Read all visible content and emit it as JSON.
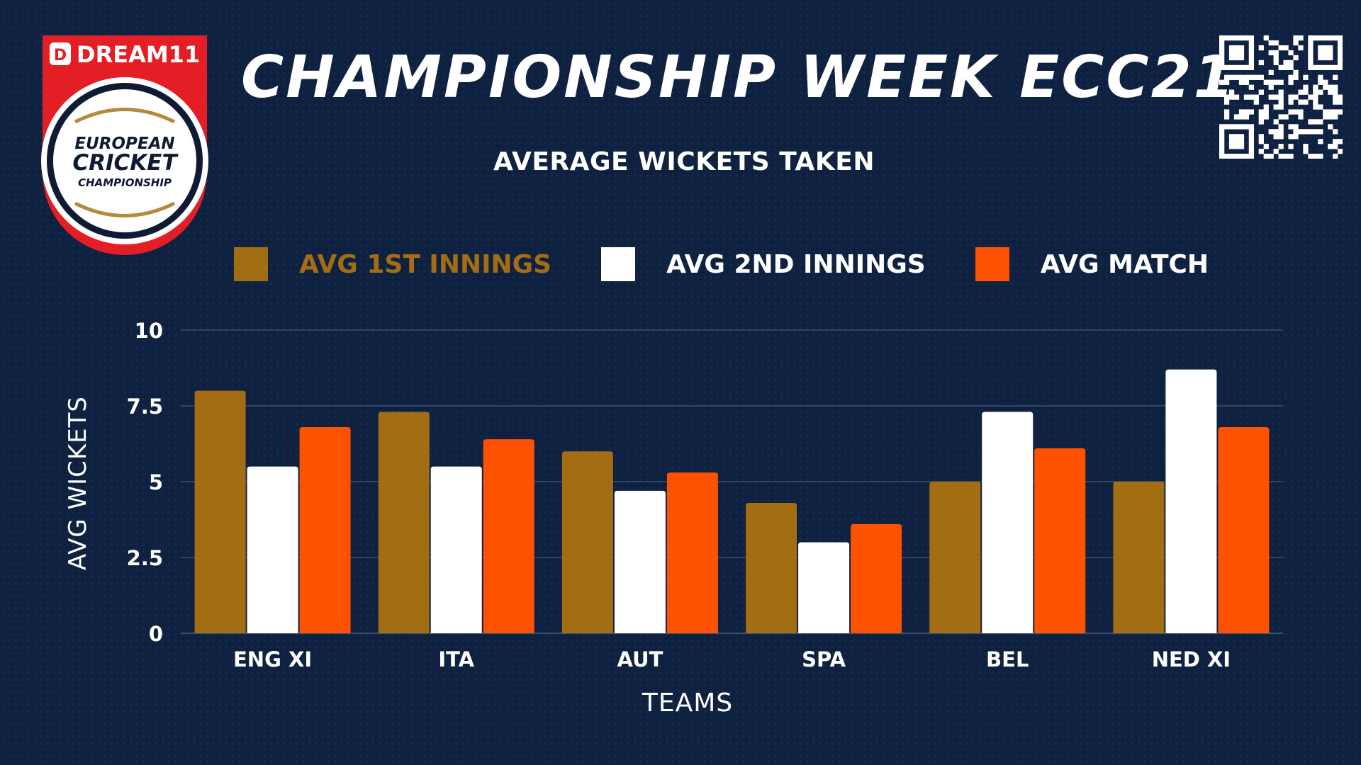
{
  "branding": {
    "logo_sponsor": "DREAM11",
    "logo_line1": "EUROPEAN",
    "logo_line2": "CRICKET",
    "logo_line3": "CHAMPIONSHIP"
  },
  "header": {
    "title": "CHAMPIONSHIP WEEK ECC21",
    "subtitle": "AVERAGE WICKETS TAKEN"
  },
  "colors": {
    "background": "#0f2140",
    "series_1": "#a36d13",
    "series_2": "#ffffff",
    "series_3": "#ff5200",
    "grid": "#3b4e6e",
    "logo_red": "#e31e24",
    "logo_gold": "#b48a3c"
  },
  "chart_data": {
    "type": "bar",
    "title": "AVERAGE WICKETS TAKEN",
    "xlabel": "TEAMS",
    "ylabel": "AVG WICKETS",
    "categories": [
      "ENG XI",
      "ITA",
      "AUT",
      "SPA",
      "BEL",
      "NED XI"
    ],
    "series": [
      {
        "name": "AVG 1ST INNINGS",
        "values": [
          8,
          7.3,
          6,
          4.3,
          5,
          5
        ],
        "color": "#a36d13"
      },
      {
        "name": "AVG 2ND INNINGS",
        "values": [
          5.5,
          5.5,
          4.7,
          3,
          7.3,
          8.7
        ],
        "color": "#ffffff"
      },
      {
        "name": "AVG MATCH",
        "values": [
          6.8,
          6.4,
          5.3,
          3.6,
          6.1,
          6.8
        ],
        "color": "#ff5200"
      }
    ],
    "ylim": [
      0,
      10
    ],
    "yticks": [
      0,
      2.5,
      5,
      7.5,
      10
    ],
    "ytick_labels": [
      "0",
      "2.5",
      "5",
      "7.5",
      "10"
    ],
    "grid": true,
    "legend_position": "top"
  }
}
